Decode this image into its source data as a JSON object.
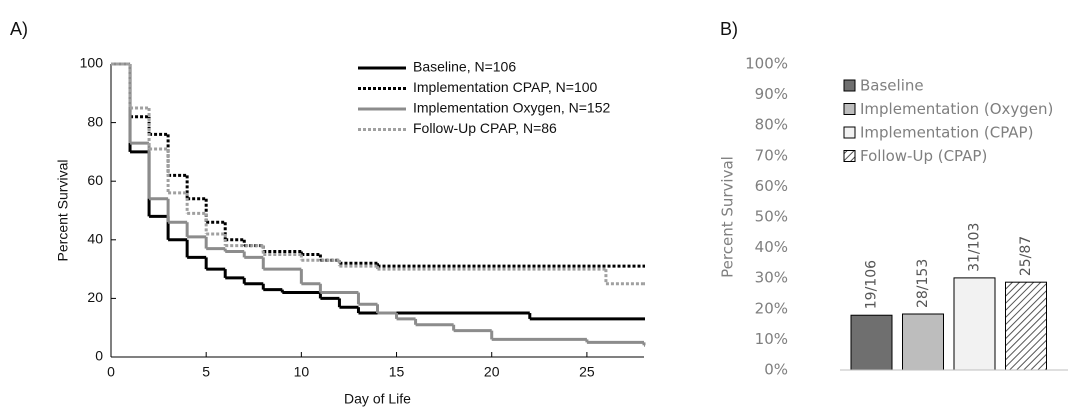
{
  "chart_data": [
    {
      "type": "line",
      "label": "A)",
      "step": "post",
      "xlabel": "Day of Life",
      "ylabel": "Percent Survival",
      "xlim": [
        0,
        28
      ],
      "xticks": [
        0,
        5,
        10,
        15,
        20,
        25
      ],
      "ylim": [
        0,
        100
      ],
      "yticks": [
        0,
        20,
        40,
        60,
        80,
        100
      ],
      "legend": "upper right",
      "series": [
        {
          "name": "Baseline, N=106",
          "color": "#000000",
          "dash": false,
          "x": [
            0,
            1,
            2,
            3,
            4,
            5,
            6,
            7,
            8,
            9,
            11,
            12,
            13,
            22,
            28
          ],
          "values": [
            100,
            70,
            48,
            40,
            34,
            30,
            27,
            25,
            23,
            22,
            20,
            17,
            15,
            13,
            13
          ]
        },
        {
          "name": "Implementation CPAP, N=100",
          "color": "#000000",
          "dash": true,
          "x": [
            0,
            1,
            2,
            3,
            4,
            5,
            6,
            7,
            8,
            10,
            11,
            12,
            14,
            28
          ],
          "values": [
            100,
            82,
            76,
            62,
            54,
            46,
            40,
            38,
            36,
            35,
            33,
            32,
            31,
            31
          ]
        },
        {
          "name": "Implementation Oxygen, N=152",
          "color": "#8c8c8c",
          "dash": false,
          "x": [
            0,
            1,
            2,
            3,
            4,
            5,
            6,
            7,
            8,
            10,
            11,
            13,
            14,
            15,
            16,
            18,
            20,
            25,
            28
          ],
          "values": [
            100,
            73,
            54,
            46,
            41,
            37,
            36,
            34,
            30,
            25,
            22,
            18,
            15,
            13,
            11,
            9,
            6,
            5,
            4
          ]
        },
        {
          "name": "Follow-Up CPAP, N=86",
          "color": "#a0a0a0",
          "dash": true,
          "x": [
            0,
            1,
            2,
            3,
            4,
            5,
            6,
            8,
            10,
            12,
            14,
            26,
            28
          ],
          "values": [
            100,
            85,
            71,
            56,
            49,
            42,
            38,
            35,
            33,
            31,
            30,
            25,
            25
          ]
        }
      ]
    },
    {
      "type": "bar",
      "label": "B)",
      "ylabel": "Percent Survival",
      "ylim": [
        0,
        100
      ],
      "yticks": [
        {
          "value": 0,
          "label": "0%"
        },
        {
          "value": 10,
          "label": "10%"
        },
        {
          "value": 20,
          "label": "20%"
        },
        {
          "value": 30,
          "label": "30%"
        },
        {
          "value": 40,
          "label": "40%"
        },
        {
          "value": 50,
          "label": "50%"
        },
        {
          "value": 60,
          "label": "60%"
        },
        {
          "value": 70,
          "label": "70%"
        },
        {
          "value": 80,
          "label": "80%"
        },
        {
          "value": 90,
          "label": "90%"
        },
        {
          "value": 100,
          "label": "100%"
        }
      ],
      "legend": "upper left",
      "series": [
        {
          "name": "Baseline",
          "color": "#6f6f6f",
          "hatch": false,
          "values": [
            17.9
          ],
          "value_labels": [
            "19/106"
          ]
        },
        {
          "name": "Implementation (Oxygen)",
          "color": "#bdbdbd",
          "hatch": false,
          "values": [
            18.3
          ],
          "value_labels": [
            "28/153"
          ]
        },
        {
          "name": "Implementation (CPAP)",
          "color": "#f2f2f2",
          "hatch": false,
          "values": [
            30.1
          ],
          "value_labels": [
            "31/103"
          ]
        },
        {
          "name": "Follow-Up (CPAP)",
          "color": "#d0d0d0",
          "hatch": true,
          "values": [
            28.7
          ],
          "value_labels": [
            "25/87"
          ]
        }
      ]
    }
  ]
}
